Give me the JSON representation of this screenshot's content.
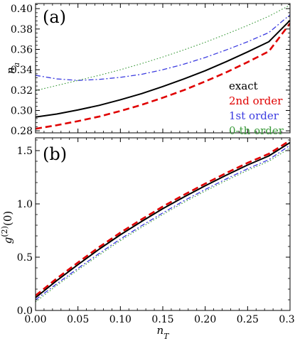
{
  "chart_data": [
    {
      "type": "line",
      "panel_label": "(a)",
      "xlabel": "",
      "ylabel": "n_a",
      "xlim": [
        0.0,
        0.3
      ],
      "ylim": [
        0.278,
        0.405
      ],
      "x_ticks": [
        "0.00",
        "0.05",
        "0.10",
        "0.15",
        "0.20",
        "0.25",
        "0.30"
      ],
      "y_ticks": [
        0.28,
        0.3,
        0.32,
        0.34,
        0.36,
        0.38,
        0.4
      ],
      "y_tick_labels": [
        "0.28",
        "0.30",
        "0.32",
        "0.34",
        "0.36",
        "0.38",
        "0.40"
      ],
      "legend_placement": "right",
      "series": [
        {
          "name": "exact",
          "color": "#000000",
          "style": "solid",
          "x": [
            0,
            0.025,
            0.05,
            0.075,
            0.1,
            0.125,
            0.15,
            0.175,
            0.2,
            0.225,
            0.25,
            0.275,
            0.3
          ],
          "values": [
            0.2935,
            0.2965,
            0.3005,
            0.305,
            0.3105,
            0.3165,
            0.3235,
            0.331,
            0.339,
            0.348,
            0.3575,
            0.3675,
            0.3885
          ]
        },
        {
          "name": "2nd order",
          "color": "#e00000",
          "style": "dashed",
          "x": [
            0,
            0.025,
            0.05,
            0.075,
            0.1,
            0.125,
            0.15,
            0.175,
            0.2,
            0.225,
            0.25,
            0.275,
            0.3
          ],
          "values": [
            0.282,
            0.2855,
            0.2895,
            0.294,
            0.2995,
            0.3055,
            0.3125,
            0.32,
            0.3285,
            0.3375,
            0.3475,
            0.358,
            0.3855
          ]
        },
        {
          "name": "1st order",
          "color": "#3a3ae0",
          "style": "dashdot",
          "x": [
            0,
            0.025,
            0.05,
            0.075,
            0.1,
            0.125,
            0.15,
            0.175,
            0.2,
            0.225,
            0.25,
            0.275,
            0.3
          ],
          "values": [
            0.3345,
            0.331,
            0.3295,
            0.3305,
            0.3325,
            0.3355,
            0.34,
            0.3455,
            0.352,
            0.3595,
            0.3675,
            0.3765,
            0.394
          ]
        },
        {
          "name": "0-th order",
          "color": "#3a9a3a",
          "style": "dotted",
          "x": [
            0,
            0.025,
            0.05,
            0.075,
            0.1,
            0.125,
            0.15,
            0.175,
            0.2,
            0.225,
            0.25,
            0.275,
            0.3
          ],
          "values": [
            0.3195,
            0.3245,
            0.3295,
            0.3345,
            0.34,
            0.346,
            0.3525,
            0.3595,
            0.367,
            0.375,
            0.3835,
            0.3925,
            0.4035
          ]
        }
      ]
    },
    {
      "type": "line",
      "panel_label": "(b)",
      "xlabel": "n_T",
      "ylabel": "g^(2)(0)",
      "xlim": [
        0.0,
        0.3
      ],
      "ylim": [
        0.0,
        1.62
      ],
      "x_ticks": [
        "0.00",
        "0.05",
        "0.10",
        "0.15",
        "0.20",
        "0.25",
        "0.30"
      ],
      "y_ticks": [
        0.0,
        0.5,
        1.0,
        1.5
      ],
      "y_tick_labels": [
        "0.0",
        "0.5",
        "1.0",
        "1.5"
      ],
      "series": [
        {
          "name": "exact",
          "color": "#000000",
          "style": "solid",
          "x": [
            0,
            0.025,
            0.05,
            0.075,
            0.1,
            0.125,
            0.15,
            0.175,
            0.2,
            0.225,
            0.25,
            0.275,
            0.3
          ],
          "values": [
            0.12,
            0.28,
            0.43,
            0.575,
            0.71,
            0.835,
            0.955,
            1.065,
            1.17,
            1.27,
            1.365,
            1.45,
            1.575
          ]
        },
        {
          "name": "2nd order",
          "color": "#e00000",
          "style": "dashed",
          "x": [
            0,
            0.025,
            0.05,
            0.075,
            0.1,
            0.125,
            0.15,
            0.175,
            0.2,
            0.225,
            0.25,
            0.275,
            0.3
          ],
          "values": [
            0.14,
            0.3,
            0.45,
            0.595,
            0.73,
            0.855,
            0.975,
            1.085,
            1.19,
            1.29,
            1.385,
            1.47,
            1.595
          ]
        },
        {
          "name": "1st order",
          "color": "#3a3ae0",
          "style": "dashdot",
          "x": [
            0,
            0.025,
            0.05,
            0.075,
            0.1,
            0.125,
            0.15,
            0.175,
            0.2,
            0.225,
            0.25,
            0.275,
            0.3
          ],
          "values": [
            0.1,
            0.25,
            0.395,
            0.535,
            0.67,
            0.795,
            0.915,
            1.03,
            1.135,
            1.235,
            1.33,
            1.415,
            1.55
          ]
        },
        {
          "name": "0-th order",
          "color": "#3a9a3a",
          "style": "dotted",
          "x": [
            0,
            0.025,
            0.05,
            0.075,
            0.1,
            0.125,
            0.15,
            0.175,
            0.2,
            0.225,
            0.25,
            0.275,
            0.3
          ],
          "values": [
            0.08,
            0.235,
            0.38,
            0.52,
            0.655,
            0.78,
            0.9,
            1.015,
            1.12,
            1.22,
            1.315,
            1.4,
            1.525
          ]
        }
      ]
    }
  ]
}
